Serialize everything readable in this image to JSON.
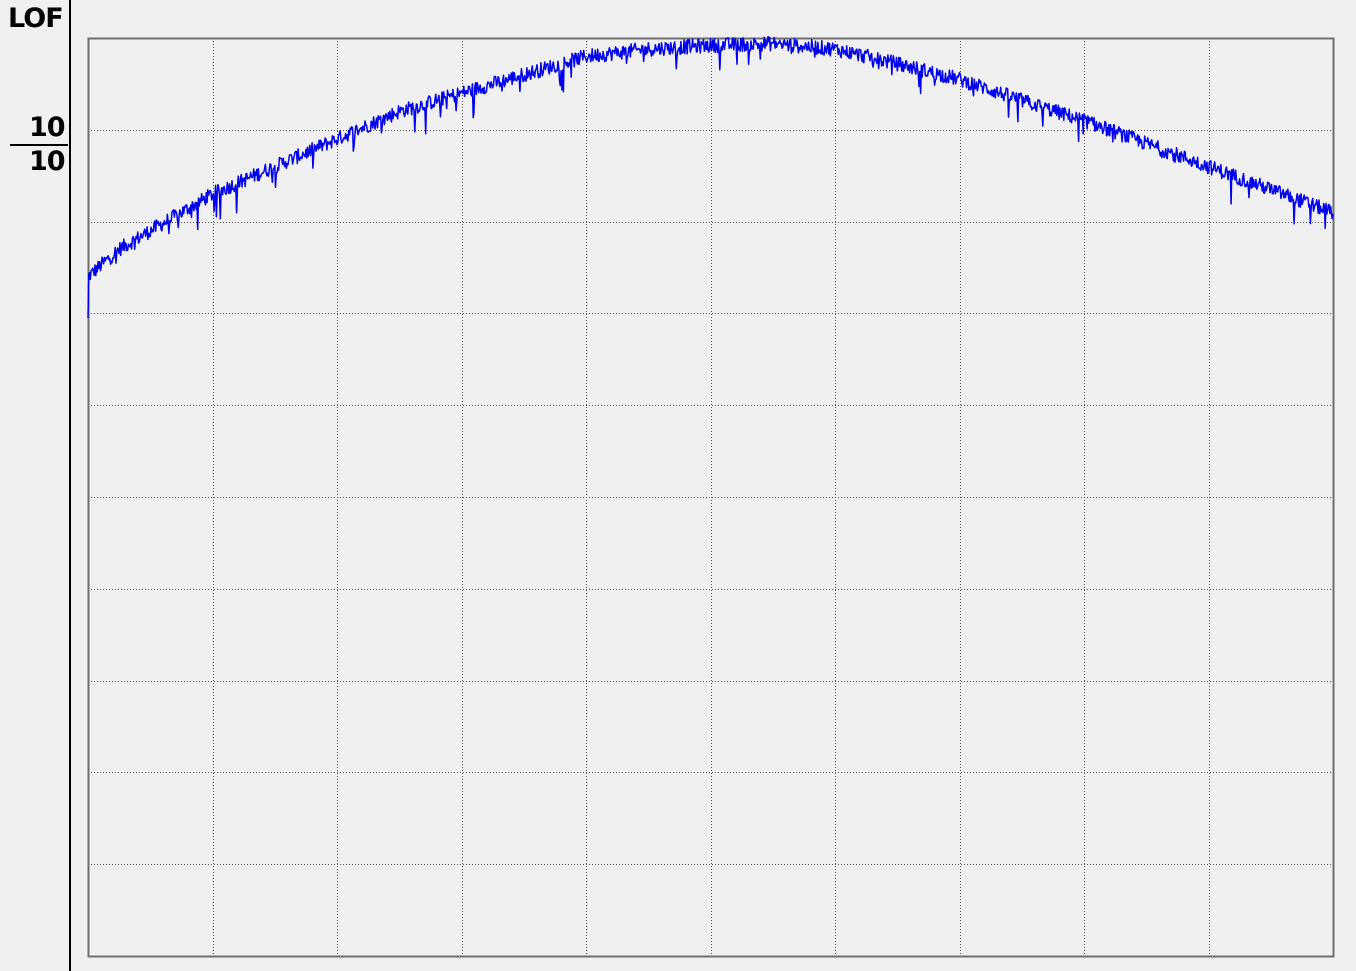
{
  "screen": {
    "mode_label": "LOF",
    "scale": {
      "value": "10",
      "per_division": "10"
    }
  },
  "chart_data": {
    "type": "line",
    "title": "",
    "xlabel": "",
    "ylabel": "",
    "grid": true,
    "x_divisions": 10,
    "y_divisions": 10,
    "xlim": [
      0,
      10
    ],
    "ylim": [
      0,
      10
    ],
    "colors": {
      "trace": "#0000ee",
      "grid": "#555555",
      "frame": "#6e6e6e"
    },
    "series": [
      {
        "x": [
          0.0,
          0.25,
          0.5,
          0.75,
          1.0,
          1.5,
          2.0,
          2.5,
          3.0,
          3.5,
          4.0,
          4.5,
          5.0,
          5.5,
          6.0,
          6.5,
          7.0,
          7.5,
          8.0,
          8.5,
          9.0,
          9.5,
          10.0
        ],
        "values": [
          7.4,
          7.7,
          7.9,
          8.1,
          8.3,
          8.6,
          8.9,
          9.2,
          9.4,
          9.6,
          9.8,
          9.88,
          9.92,
          9.94,
          9.88,
          9.72,
          9.55,
          9.32,
          9.1,
          8.85,
          8.6,
          8.35,
          8.1
        ]
      }
    ]
  }
}
